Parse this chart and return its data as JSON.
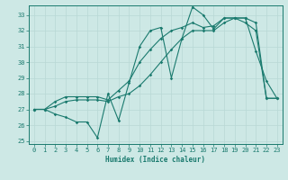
{
  "xlabel": "Humidex (Indice chaleur)",
  "bg_color": "#cde8e5",
  "line_color": "#1a7a6e",
  "grid_color": "#b8d8d5",
  "xlim": [
    -0.5,
    23.5
  ],
  "ylim": [
    24.8,
    33.6
  ],
  "yticks": [
    25,
    26,
    27,
    28,
    29,
    30,
    31,
    32,
    33
  ],
  "xticks": [
    0,
    1,
    2,
    3,
    4,
    5,
    6,
    7,
    8,
    9,
    10,
    11,
    12,
    13,
    14,
    15,
    16,
    17,
    18,
    19,
    20,
    21,
    22,
    23
  ],
  "series1": {
    "x": [
      0,
      1,
      2,
      3,
      4,
      5,
      6,
      7,
      8,
      9,
      10,
      11,
      12,
      13,
      14,
      15,
      16,
      17,
      18,
      19,
      20,
      21,
      22,
      23
    ],
    "y": [
      27.0,
      27.0,
      26.7,
      26.5,
      26.2,
      26.2,
      25.2,
      28.0,
      26.3,
      28.7,
      31.0,
      32.0,
      32.2,
      29.0,
      31.5,
      33.5,
      33.0,
      32.1,
      32.8,
      32.8,
      32.8,
      30.7,
      28.8,
      27.7
    ]
  },
  "series2": {
    "x": [
      0,
      1,
      2,
      3,
      4,
      5,
      6,
      7,
      8,
      9,
      10,
      11,
      12,
      13,
      14,
      15,
      16,
      17,
      18,
      19,
      20,
      21,
      22,
      23
    ],
    "y": [
      27.0,
      27.0,
      27.5,
      27.8,
      27.8,
      27.8,
      27.8,
      27.6,
      28.2,
      28.8,
      30.0,
      30.8,
      31.5,
      32.0,
      32.2,
      32.5,
      32.2,
      32.3,
      32.8,
      32.8,
      32.8,
      32.5,
      27.7,
      27.7
    ]
  },
  "series3": {
    "x": [
      0,
      1,
      2,
      3,
      4,
      5,
      6,
      7,
      8,
      9,
      10,
      11,
      12,
      13,
      14,
      15,
      16,
      17,
      18,
      19,
      20,
      21,
      22,
      23
    ],
    "y": [
      27.0,
      27.0,
      27.2,
      27.5,
      27.6,
      27.6,
      27.6,
      27.5,
      27.8,
      28.0,
      28.5,
      29.2,
      30.0,
      30.8,
      31.5,
      32.0,
      32.0,
      32.0,
      32.5,
      32.8,
      32.5,
      32.0,
      27.7,
      27.7
    ]
  }
}
